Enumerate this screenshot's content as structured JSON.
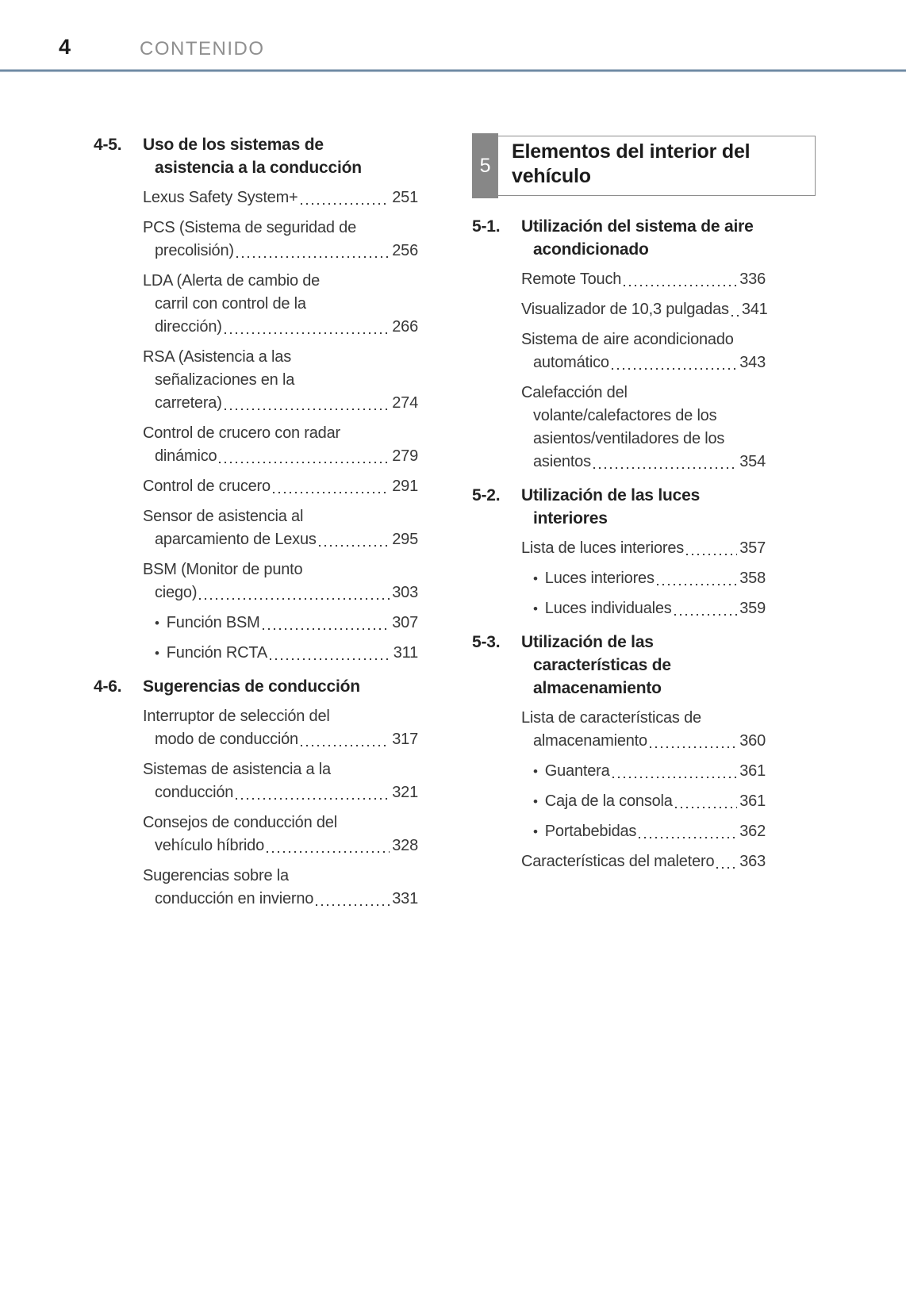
{
  "page": {
    "number": "4",
    "header_title": "CONTENIDO"
  },
  "colors": {
    "rule_blue": "#6f8ba4",
    "chapter_badge_gray": "#878787",
    "header_title_gray": "#8f8f8f",
    "text": "#383838"
  },
  "left_column": {
    "blocks": [
      {
        "type": "section",
        "num": "4-5.",
        "title_lines": [
          "Uso de los sistemas de",
          "asistencia a la conducción"
        ]
      },
      {
        "type": "entry",
        "pre_lines": [],
        "last_line": "Lexus Safety System+",
        "page": "251"
      },
      {
        "type": "entry",
        "pre_lines": [
          "PCS (Sistema de seguridad de"
        ],
        "last_line": "precolisión)",
        "page": "256"
      },
      {
        "type": "entry",
        "pre_lines": [
          "LDA (Alerta de cambio de",
          "carril con control de la"
        ],
        "last_line": "dirección)",
        "page": "266"
      },
      {
        "type": "entry",
        "pre_lines": [
          "RSA (Asistencia a las",
          "señalizaciones en la"
        ],
        "last_line": "carretera)",
        "page": "274"
      },
      {
        "type": "entry",
        "pre_lines": [
          "Control de crucero con radar"
        ],
        "last_line": "dinámico",
        "page": "279"
      },
      {
        "type": "entry",
        "pre_lines": [],
        "last_line": "Control de crucero",
        "page": "291"
      },
      {
        "type": "entry",
        "pre_lines": [
          "Sensor de asistencia al"
        ],
        "last_line": "aparcamiento de Lexus",
        "page": "295"
      },
      {
        "type": "entry",
        "pre_lines": [
          "BSM (Monitor de punto"
        ],
        "last_line": "ciego)",
        "page": "303"
      },
      {
        "type": "entry",
        "bullet": true,
        "pre_lines": [],
        "last_line": "Función BSM",
        "page": "307"
      },
      {
        "type": "entry",
        "bullet": true,
        "pre_lines": [],
        "last_line": "Función RCTA",
        "page": "311"
      },
      {
        "type": "section",
        "num": "4-6.",
        "title_lines": [
          "Sugerencias de conducción"
        ]
      },
      {
        "type": "entry",
        "pre_lines": [
          "Interruptor de selección del"
        ],
        "last_line": "modo de conducción",
        "page": "317"
      },
      {
        "type": "entry",
        "pre_lines": [
          "Sistemas de asistencia a la"
        ],
        "last_line": "conducción",
        "page": "321"
      },
      {
        "type": "entry",
        "pre_lines": [
          "Consejos de conducción del"
        ],
        "last_line": "vehículo híbrido",
        "page": "328"
      },
      {
        "type": "entry",
        "pre_lines": [
          "Sugerencias sobre la"
        ],
        "last_line": "conducción en invierno",
        "page": "331"
      }
    ]
  },
  "right_column": {
    "chapter": {
      "num": "5",
      "title_lines": [
        "Elementos del interior del",
        "vehículo"
      ]
    },
    "blocks": [
      {
        "type": "section",
        "num": "5-1.",
        "title_lines": [
          "Utilización del sistema de aire",
          "acondicionado"
        ]
      },
      {
        "type": "entry",
        "pre_lines": [],
        "last_line": "Remote Touch",
        "page": "336"
      },
      {
        "type": "entry",
        "pre_lines": [],
        "last_line": "Visualizador de 10,3 pulgadas",
        "page": "341"
      },
      {
        "type": "entry",
        "pre_lines": [
          "Sistema de aire acondicionado"
        ],
        "last_line": "automático",
        "page": "343"
      },
      {
        "type": "entry",
        "pre_lines": [
          "Calefacción del",
          "volante/calefactores de los",
          "asientos/ventiladores de los"
        ],
        "last_line": "asientos",
        "page": "354"
      },
      {
        "type": "section",
        "num": "5-2.",
        "title_lines": [
          "Utilización de las luces",
          "interiores"
        ]
      },
      {
        "type": "entry",
        "pre_lines": [],
        "last_line": "Lista de luces interiores",
        "page": "357"
      },
      {
        "type": "entry",
        "bullet": true,
        "pre_lines": [],
        "last_line": "Luces interiores",
        "page": "358"
      },
      {
        "type": "entry",
        "bullet": true,
        "pre_lines": [],
        "last_line": "Luces individuales",
        "page": "359"
      },
      {
        "type": "section",
        "num": "5-3.",
        "title_lines": [
          "Utilización de las",
          "características de",
          "almacenamiento"
        ]
      },
      {
        "type": "entry",
        "pre_lines": [
          "Lista de características de"
        ],
        "last_line": "almacenamiento",
        "page": "360"
      },
      {
        "type": "entry",
        "bullet": true,
        "pre_lines": [],
        "last_line": "Guantera",
        "page": "361"
      },
      {
        "type": "entry",
        "bullet": true,
        "pre_lines": [],
        "last_line": "Caja de la consola",
        "page": "361"
      },
      {
        "type": "entry",
        "bullet": true,
        "pre_lines": [],
        "last_line": "Portabebidas",
        "page": "362"
      },
      {
        "type": "entry",
        "pre_lines": [],
        "last_line": "Características del maletero",
        "page": "363"
      }
    ]
  }
}
